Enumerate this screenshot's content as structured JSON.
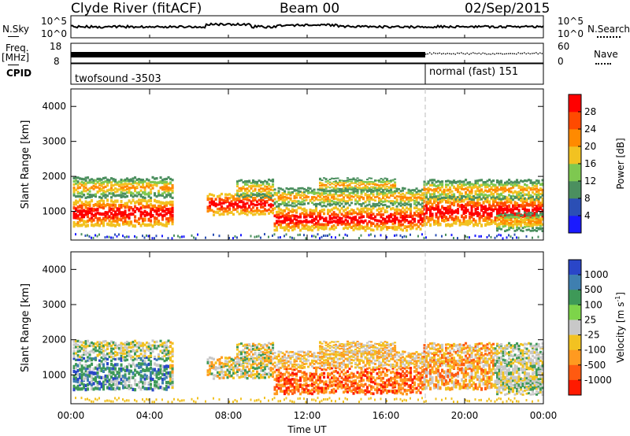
{
  "header": {
    "station": "Clyde River (fitACF)",
    "beam": "Beam 00",
    "date": "02/Sep/2015"
  },
  "top_panels": {
    "nsky_label": "N.Sky",
    "nsearch_label": "N.Search",
    "nsky_ticks": [
      "10^5",
      "10^0"
    ],
    "nsearch_ticks": [
      "10^5",
      "10^0"
    ],
    "freq_label_1": "Freq.",
    "freq_label_2": "[MHz]",
    "freq_ticks": [
      "18",
      "8"
    ],
    "nave_label": "Nave",
    "nave_ticks": [
      "60",
      "0"
    ],
    "cpid_label": "CPID",
    "cpid_segments": [
      {
        "text": "twofsound -3503",
        "start_hour": 0,
        "end_hour": 18
      },
      {
        "text": "normal (fast) 151",
        "start_hour": 18,
        "end_hour": 24
      }
    ]
  },
  "chart_data": [
    {
      "type": "heatmap",
      "name": "Power",
      "ylabel": "Slant Range [km]",
      "xlabel": "",
      "xlim": [
        0,
        24
      ],
      "ylim": [
        180,
        4500
      ],
      "y_ticks": [
        "1000",
        "2000",
        "3000",
        "4000"
      ],
      "y_tick_values": [
        1000,
        2000,
        3000,
        4000
      ],
      "colorbar": {
        "label": "Power [dB]",
        "ticks": [
          "4",
          "8",
          "12",
          "16",
          "20",
          "24",
          "28"
        ],
        "bands": [
          "#1a1aff",
          "#2b4fb5",
          "#4b8f5f",
          "#7ec850",
          "#f2c221",
          "#ff8a00",
          "#ff4a00",
          "#ff0000"
        ]
      }
    },
    {
      "type": "heatmap",
      "name": "Velocity",
      "ylabel": "Slant Range [km]",
      "xlabel": "Time UT",
      "xlim": [
        0,
        24
      ],
      "ylim": [
        180,
        4500
      ],
      "y_ticks": [
        "1000",
        "2000",
        "3000",
        "4000"
      ],
      "y_tick_values": [
        1000,
        2000,
        3000,
        4000
      ],
      "x_ticks": [
        "00:00",
        "04:00",
        "08:00",
        "12:00",
        "16:00",
        "20:00",
        "00:00"
      ],
      "x_tick_values": [
        0,
        4,
        8,
        12,
        16,
        20,
        24
      ],
      "colorbar": {
        "label_main": "Velocity  [m s",
        "label_sup": "-1",
        "label_end": "]",
        "ticks": [
          "1000",
          "500",
          "100",
          "25",
          "-25",
          "-100",
          "-500",
          "-1000"
        ],
        "bands": [
          "#2a46c8",
          "#3f7fb0",
          "#3e9958",
          "#7dd44a",
          "#c8c8c8",
          "#f2c221",
          "#ff9a20",
          "#ff5a10",
          "#ff1a00"
        ]
      }
    }
  ],
  "colors": {
    "background": "#ffffff",
    "axis": "#000000",
    "mode_change_line": "#bbbbbb"
  }
}
